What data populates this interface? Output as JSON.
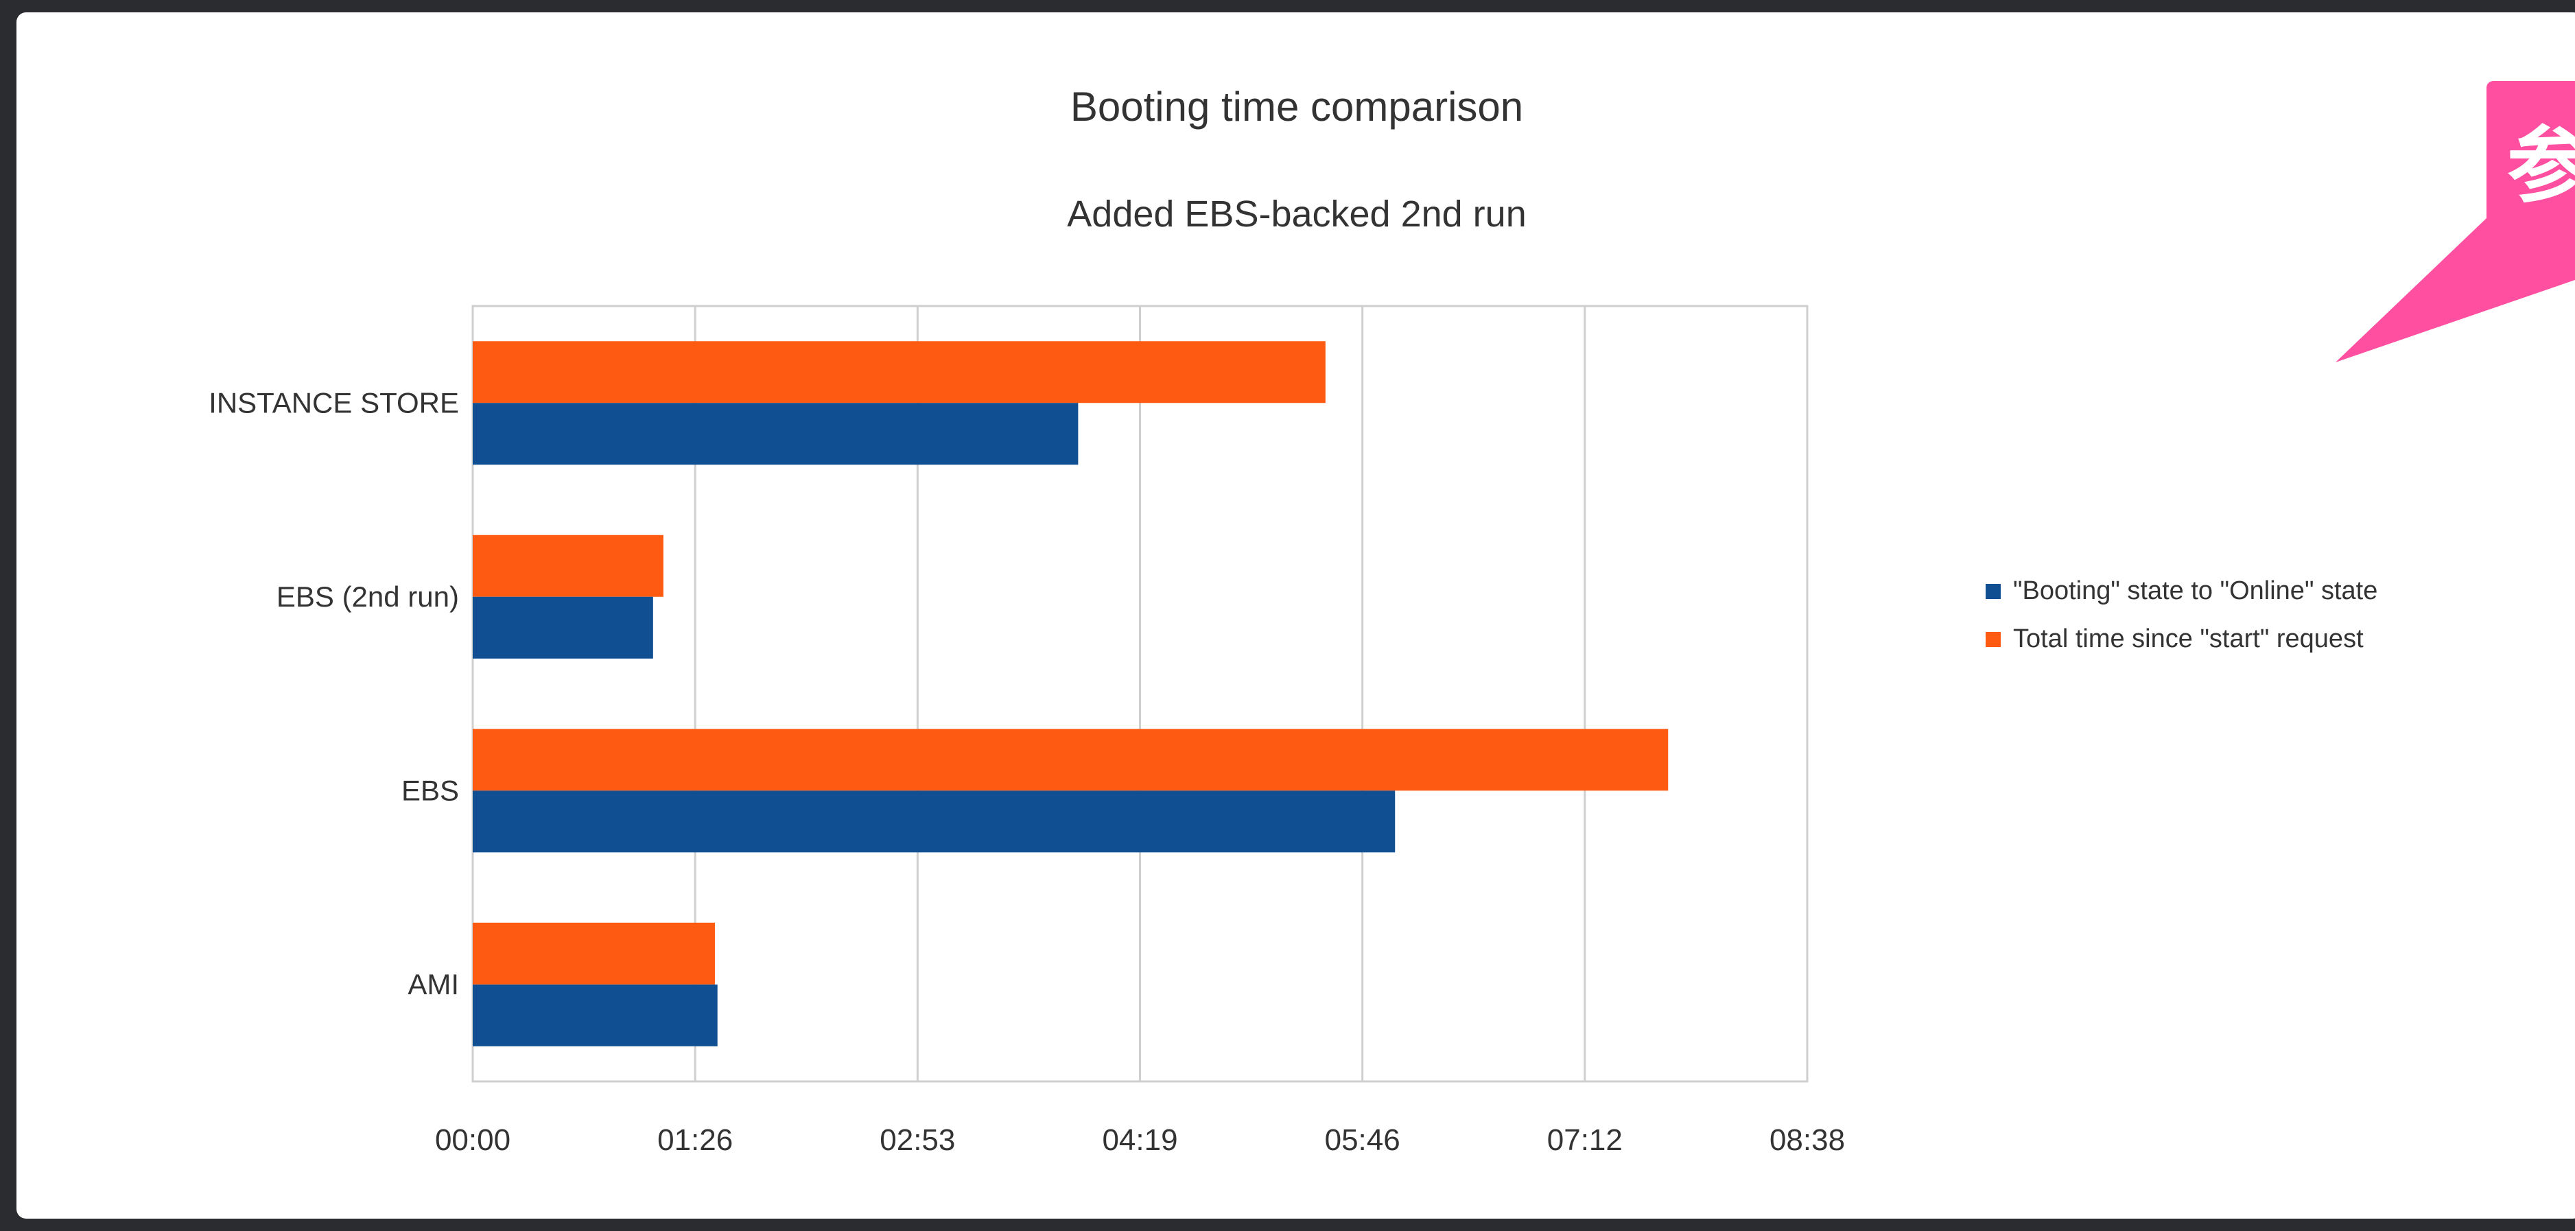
{
  "chart_data": {
    "type": "bar",
    "orientation": "horizontal",
    "title": "Booting time comparison",
    "subtitle": "Added EBS-backed 2nd run",
    "categories": [
      "INSTANCE STORE",
      "EBS (2nd run)",
      "EBS",
      "AMI"
    ],
    "series": [
      {
        "name": "\"Booting\" state to \"Online\" state",
        "color": "#0f4f92",
        "values_seconds": [
          235,
          70,
          358,
          95
        ]
      },
      {
        "name": "Total time since \"start\" request",
        "color": "#ff5a12",
        "values_seconds": [
          331,
          74,
          464,
          94
        ]
      }
    ],
    "x_ticks": [
      "00:00",
      "01:26",
      "02:53",
      "04:19",
      "05:46",
      "07:12",
      "08:38"
    ],
    "xlim_seconds": [
      0,
      518
    ],
    "x_unit": "mm:ss",
    "grid": "vertical",
    "legend_position": "right"
  },
  "callout": {
    "text": "参",
    "color": "#ff4fa0"
  }
}
